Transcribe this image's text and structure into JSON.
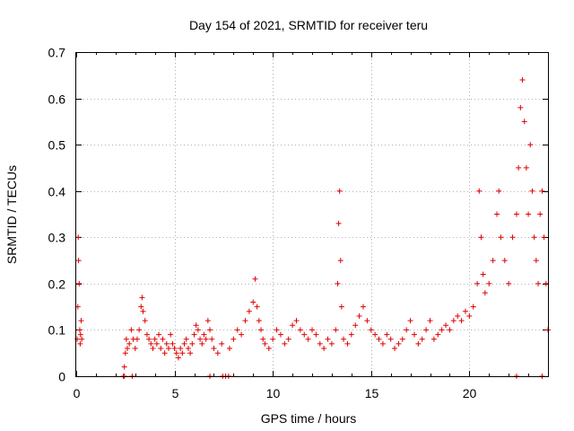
{
  "chart_data": {
    "type": "scatter",
    "title": "Day 154 of 2021, SRMTID for receiver teru",
    "xlabel": "GPS time / hours",
    "ylabel": "SRMTID / TECUs",
    "xlim": [
      0,
      24
    ],
    "ylim": [
      0,
      0.7
    ],
    "xticks": [
      0,
      5,
      10,
      15,
      20
    ],
    "yticks": [
      0,
      0.1,
      0.2,
      0.3,
      0.4,
      0.5,
      0.6,
      0.7
    ],
    "xtick_labels": [
      "0",
      "5",
      "10",
      "15",
      "20"
    ],
    "ytick_labels": [
      "0",
      "0.1",
      "0.2",
      "0.3",
      "0.4",
      "0.5",
      "0.6",
      "0.7"
    ],
    "grid": true,
    "marker": "+",
    "color": "#e00000",
    "series": [
      {
        "name": "SRMTID",
        "points": [
          [
            0.05,
            0.08
          ],
          [
            0.08,
            0.15
          ],
          [
            0.1,
            0.3
          ],
          [
            0.12,
            0.25
          ],
          [
            0.15,
            0.2
          ],
          [
            0.18,
            0.1
          ],
          [
            0.2,
            0.07
          ],
          [
            0.22,
            0.09
          ],
          [
            0.25,
            0.12
          ],
          [
            0.28,
            0.08
          ],
          [
            2.4,
            0.0
          ],
          [
            2.45,
            0.02
          ],
          [
            2.5,
            0.05
          ],
          [
            2.55,
            0.08
          ],
          [
            2.6,
            0.06
          ],
          [
            2.7,
            0.07
          ],
          [
            2.8,
            0.1
          ],
          [
            2.9,
            0.08
          ],
          [
            3.0,
            0.06
          ],
          [
            3.1,
            0.08
          ],
          [
            3.2,
            0.1
          ],
          [
            3.3,
            0.15
          ],
          [
            3.35,
            0.17
          ],
          [
            3.4,
            0.14
          ],
          [
            3.5,
            0.12
          ],
          [
            3.6,
            0.09
          ],
          [
            3.7,
            0.08
          ],
          [
            3.8,
            0.07
          ],
          [
            3.9,
            0.06
          ],
          [
            4.0,
            0.08
          ],
          [
            4.1,
            0.07
          ],
          [
            4.2,
            0.09
          ],
          [
            4.3,
            0.06
          ],
          [
            4.4,
            0.08
          ],
          [
            4.5,
            0.05
          ],
          [
            4.6,
            0.07
          ],
          [
            4.7,
            0.06
          ],
          [
            4.8,
            0.09
          ],
          [
            4.9,
            0.07
          ],
          [
            5.0,
            0.06
          ],
          [
            5.1,
            0.05
          ],
          [
            5.2,
            0.04
          ],
          [
            5.3,
            0.06
          ],
          [
            5.4,
            0.05
          ],
          [
            5.5,
            0.07
          ],
          [
            5.6,
            0.08
          ],
          [
            5.7,
            0.06
          ],
          [
            5.8,
            0.05
          ],
          [
            5.9,
            0.07
          ],
          [
            6.0,
            0.09
          ],
          [
            6.1,
            0.11
          ],
          [
            6.2,
            0.1
          ],
          [
            6.3,
            0.08
          ],
          [
            6.4,
            0.07
          ],
          [
            6.5,
            0.09
          ],
          [
            6.6,
            0.08
          ],
          [
            6.7,
            0.12
          ],
          [
            6.8,
            0.1
          ],
          [
            6.9,
            0.08
          ],
          [
            7.0,
            0.06
          ],
          [
            7.2,
            0.05
          ],
          [
            7.4,
            0.07
          ],
          [
            7.6,
            0.0
          ],
          [
            7.8,
            0.06
          ],
          [
            8.0,
            0.08
          ],
          [
            8.2,
            0.1
          ],
          [
            8.4,
            0.09
          ],
          [
            8.6,
            0.12
          ],
          [
            8.8,
            0.14
          ],
          [
            9.0,
            0.16
          ],
          [
            9.1,
            0.21
          ],
          [
            9.2,
            0.15
          ],
          [
            9.3,
            0.12
          ],
          [
            9.4,
            0.1
          ],
          [
            9.5,
            0.08
          ],
          [
            9.6,
            0.07
          ],
          [
            9.8,
            0.06
          ],
          [
            10.0,
            0.08
          ],
          [
            10.2,
            0.1
          ],
          [
            10.4,
            0.09
          ],
          [
            10.6,
            0.07
          ],
          [
            10.8,
            0.08
          ],
          [
            11.0,
            0.11
          ],
          [
            11.2,
            0.12
          ],
          [
            11.4,
            0.1
          ],
          [
            11.6,
            0.09
          ],
          [
            11.8,
            0.08
          ],
          [
            12.0,
            0.1
          ],
          [
            12.2,
            0.09
          ],
          [
            12.4,
            0.07
          ],
          [
            12.6,
            0.06
          ],
          [
            12.8,
            0.08
          ],
          [
            13.0,
            0.07
          ],
          [
            13.2,
            0.1
          ],
          [
            13.3,
            0.2
          ],
          [
            13.35,
            0.33
          ],
          [
            13.4,
            0.4
          ],
          [
            13.45,
            0.25
          ],
          [
            13.5,
            0.15
          ],
          [
            13.6,
            0.08
          ],
          [
            13.8,
            0.07
          ],
          [
            14.0,
            0.09
          ],
          [
            14.2,
            0.11
          ],
          [
            14.4,
            0.13
          ],
          [
            14.6,
            0.15
          ],
          [
            14.8,
            0.12
          ],
          [
            15.0,
            0.1
          ],
          [
            15.2,
            0.09
          ],
          [
            15.4,
            0.08
          ],
          [
            15.6,
            0.07
          ],
          [
            15.8,
            0.09
          ],
          [
            16.0,
            0.08
          ],
          [
            16.2,
            0.06
          ],
          [
            16.4,
            0.07
          ],
          [
            16.6,
            0.08
          ],
          [
            16.8,
            0.1
          ],
          [
            17.0,
            0.12
          ],
          [
            17.2,
            0.09
          ],
          [
            17.4,
            0.07
          ],
          [
            17.6,
            0.08
          ],
          [
            17.8,
            0.1
          ],
          [
            18.0,
            0.12
          ],
          [
            18.2,
            0.08
          ],
          [
            18.4,
            0.09
          ],
          [
            18.6,
            0.1
          ],
          [
            18.8,
            0.11
          ],
          [
            19.0,
            0.1
          ],
          [
            19.2,
            0.12
          ],
          [
            19.4,
            0.13
          ],
          [
            19.6,
            0.12
          ],
          [
            19.8,
            0.14
          ],
          [
            20.0,
            0.13
          ],
          [
            20.2,
            0.15
          ],
          [
            20.4,
            0.2
          ],
          [
            20.5,
            0.4
          ],
          [
            20.6,
            0.3
          ],
          [
            20.7,
            0.22
          ],
          [
            20.8,
            0.18
          ],
          [
            21.0,
            0.2
          ],
          [
            21.2,
            0.25
          ],
          [
            21.4,
            0.35
          ],
          [
            21.5,
            0.4
          ],
          [
            21.6,
            0.3
          ],
          [
            21.8,
            0.25
          ],
          [
            22.0,
            0.2
          ],
          [
            22.2,
            0.3
          ],
          [
            22.4,
            0.35
          ],
          [
            22.5,
            0.45
          ],
          [
            22.6,
            0.58
          ],
          [
            22.7,
            0.64
          ],
          [
            22.8,
            0.55
          ],
          [
            22.9,
            0.45
          ],
          [
            23.0,
            0.35
          ],
          [
            23.1,
            0.5
          ],
          [
            23.2,
            0.4
          ],
          [
            23.3,
            0.3
          ],
          [
            23.4,
            0.25
          ],
          [
            23.5,
            0.2
          ],
          [
            23.6,
            0.35
          ],
          [
            23.7,
            0.4
          ],
          [
            23.8,
            0.3
          ],
          [
            23.9,
            0.2
          ],
          [
            24.0,
            0.1
          ],
          [
            2.45,
            0.0
          ],
          [
            2.85,
            0.0
          ],
          [
            6.8,
            0.0
          ],
          [
            7.45,
            0.0
          ],
          [
            7.75,
            0.0
          ],
          [
            22.4,
            0.0
          ],
          [
            23.7,
            0.0
          ]
        ]
      }
    ]
  }
}
